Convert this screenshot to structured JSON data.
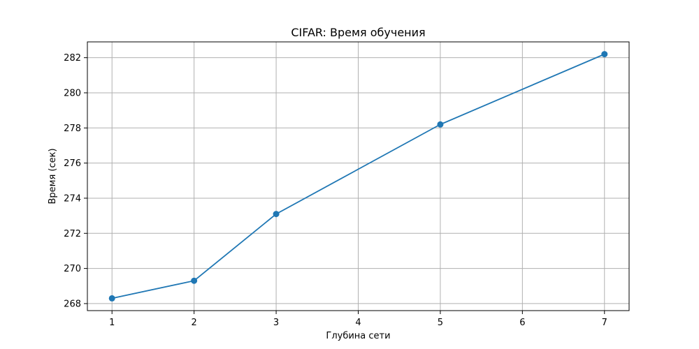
{
  "chart_data": {
    "type": "line",
    "title": "CIFAR: Время обучения",
    "xlabel": "Глубина сети",
    "ylabel": "Время (сек)",
    "x": [
      1,
      2,
      3,
      5,
      7
    ],
    "series": [
      {
        "values": [
          268.3,
          269.3,
          273.1,
          278.2,
          282.2
        ],
        "color": "#1f77b4",
        "marker": "circle"
      }
    ],
    "xticks": [
      1,
      2,
      3,
      4,
      5,
      6,
      7
    ],
    "yticks": [
      268,
      270,
      272,
      274,
      276,
      278,
      280,
      282
    ],
    "xlim": [
      0.7,
      7.3
    ],
    "ylim": [
      267.6,
      282.9
    ],
    "grid": true
  }
}
